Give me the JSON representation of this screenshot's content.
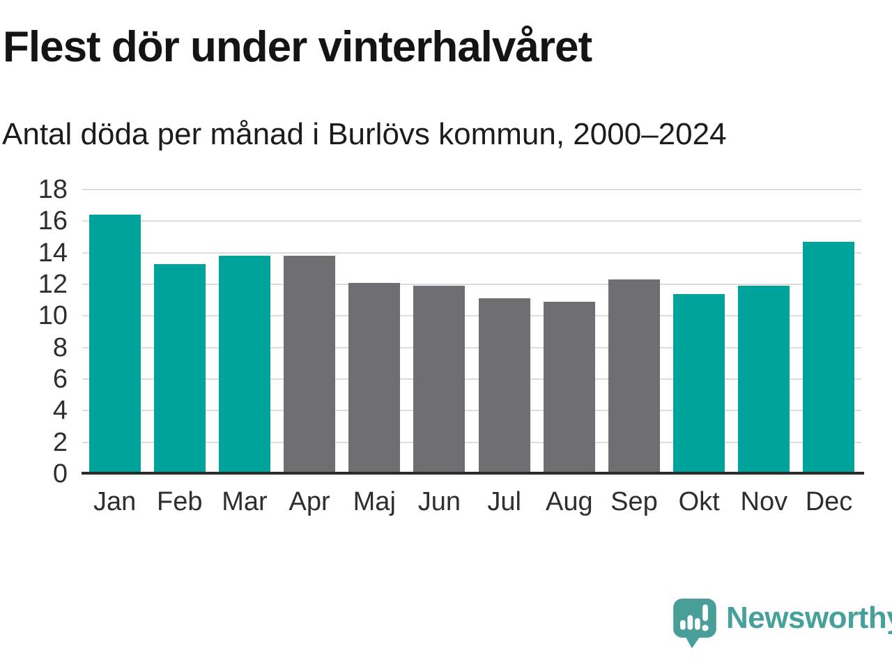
{
  "header": {
    "title": "Flest dör under vinterhalvåret",
    "subtitle": "Antal döda per månad i Burlövs kommun, 2000–2024"
  },
  "chart_data": {
    "type": "bar",
    "title": "Flest dör under vinterhalvåret",
    "subtitle": "Antal döda per månad i Burlövs kommun, 2000–2024",
    "categories": [
      "Jan",
      "Feb",
      "Mar",
      "Apr",
      "Maj",
      "Jun",
      "Jul",
      "Aug",
      "Sep",
      "Okt",
      "Nov",
      "Dec"
    ],
    "values": [
      16.4,
      13.3,
      13.8,
      13.8,
      12.1,
      11.9,
      11.1,
      10.9,
      12.3,
      11.4,
      11.9,
      14.7
    ],
    "bar_color_keys": [
      "teal",
      "teal",
      "teal",
      "gray",
      "gray",
      "gray",
      "gray",
      "gray",
      "gray",
      "teal",
      "teal",
      "teal"
    ],
    "colors": {
      "teal": "#00a39b",
      "gray": "#6e6e73"
    },
    "xlabel": "",
    "ylabel": "",
    "ylim": [
      0,
      18
    ],
    "ytick_step": 2,
    "grid": true,
    "gridline_color": "#dcdcdc",
    "axis_color": "#2b2b2b",
    "legend": "none"
  },
  "footer": {
    "brand": "Newsworthy",
    "brand_color": "#46a19b",
    "icon_color": "#4a9e99"
  }
}
